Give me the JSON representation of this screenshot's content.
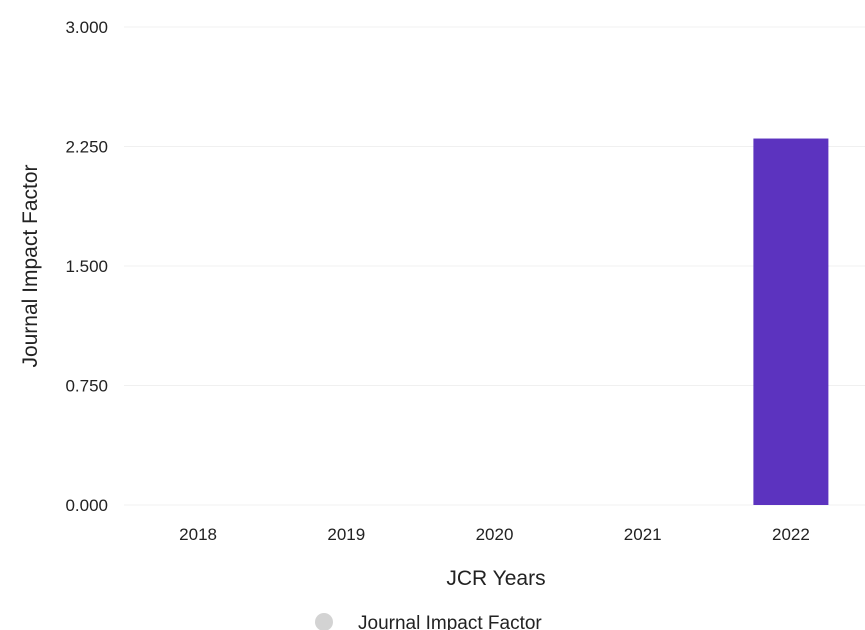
{
  "chart_data": {
    "type": "bar",
    "title": "",
    "xlabel": "JCR Years",
    "ylabel": "Journal Impact Factor",
    "categories": [
      "2018",
      "2019",
      "2020",
      "2021",
      "2022"
    ],
    "series": [
      {
        "name": "Journal Impact Factor",
        "values": [
          0,
          0,
          0,
          0,
          2.3
        ],
        "color": "#5c33bf"
      }
    ],
    "ylim": [
      0,
      3
    ],
    "yticks": [
      "0.000",
      "0.750",
      "1.500",
      "2.250",
      "3.000"
    ],
    "grid": true,
    "legend_position": "bottom-center",
    "legend_marker_color": "#d3d3d3"
  }
}
